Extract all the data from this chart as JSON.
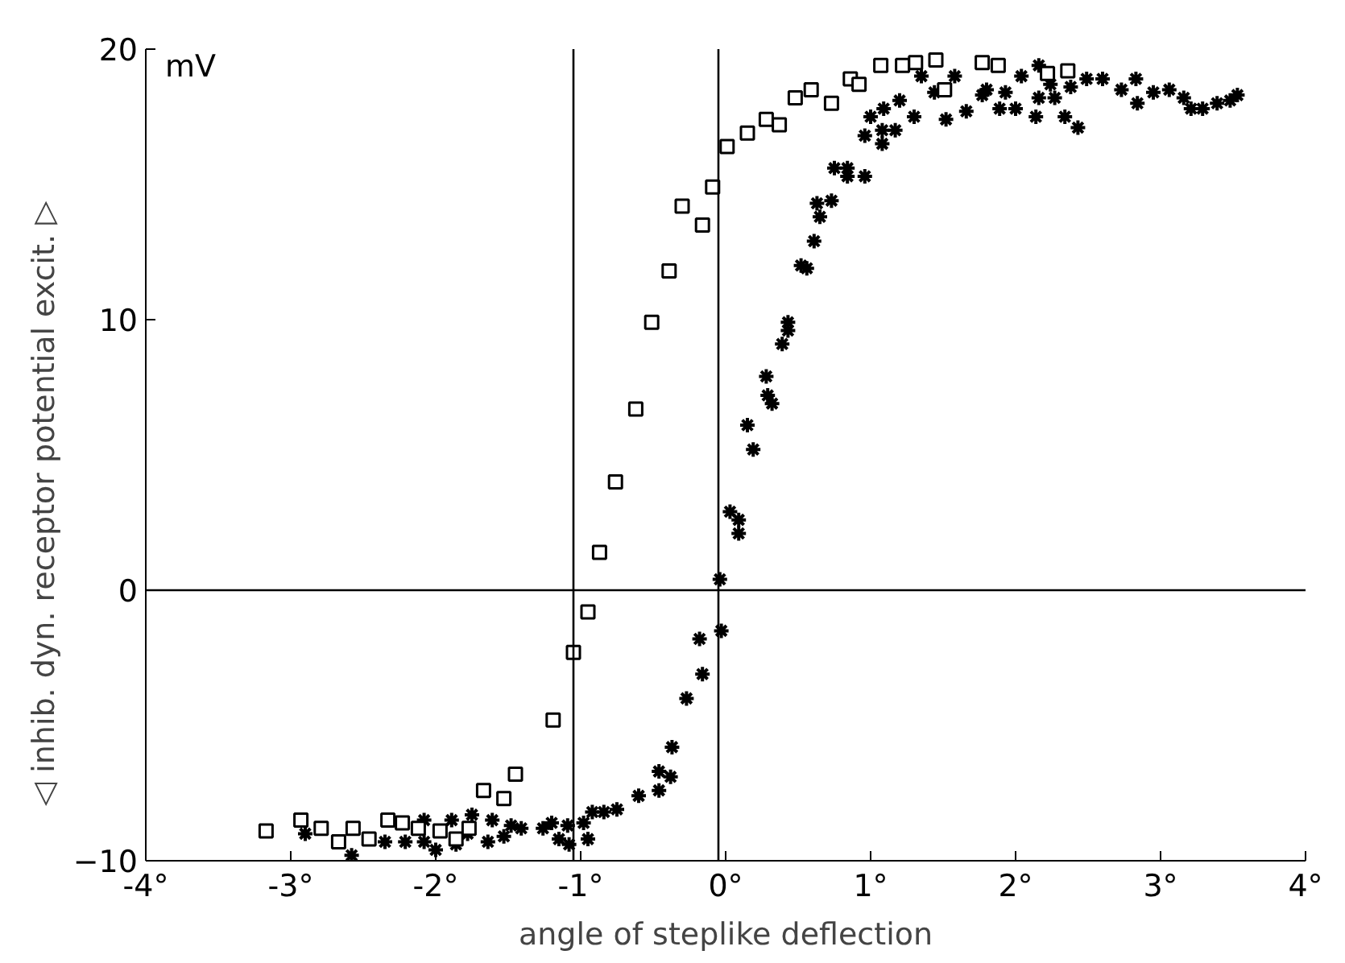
{
  "chart_data": {
    "type": "scatter",
    "xlabel": "angle of steplike deflection",
    "ylabel": "◁ inhib.      dyn. receptor potential      excit. ▷",
    "annotations": [
      "mV"
    ],
    "xlim": [
      -4,
      4
    ],
    "ylim": [
      -10,
      20
    ],
    "xticks": [
      {
        "value": -4,
        "label": "-4°"
      },
      {
        "value": -3,
        "label": "-3°"
      },
      {
        "value": -2,
        "label": "-2°"
      },
      {
        "value": -1,
        "label": "-1°"
      },
      {
        "value": 0,
        "label": "0°"
      },
      {
        "value": 1,
        "label": "1°"
      },
      {
        "value": 2,
        "label": "2°"
      },
      {
        "value": 3,
        "label": "3°"
      },
      {
        "value": 4,
        "label": "4°"
      }
    ],
    "yticks": [
      -10,
      0,
      10,
      20
    ],
    "grid": false,
    "ref_lines": [
      {
        "axis": "y",
        "value": 0,
        "color": "#000000"
      },
      {
        "axis": "x",
        "value": -1.05,
        "color": "#000000"
      },
      {
        "axis": "x",
        "value": -0.05,
        "color": "#000000"
      }
    ],
    "series": [
      {
        "color": "#000000",
        "marker": "square",
        "x": [
          -3.17,
          -2.93,
          -2.79,
          -2.67,
          -2.57,
          -2.46,
          -2.33,
          -2.23,
          -2.12,
          -1.97,
          -1.86,
          -1.77,
          -1.67,
          -1.53,
          -1.45,
          -1.19,
          -1.05,
          -0.95,
          -0.87,
          -0.76,
          -0.62,
          -0.51,
          -0.39,
          -0.3,
          -0.16,
          -0.09,
          0.01,
          0.15,
          0.28,
          0.37,
          0.48,
          0.59,
          0.73,
          0.86,
          0.92,
          1.07,
          1.22,
          1.31,
          1.45,
          1.51,
          1.77,
          1.88,
          2.22,
          2.36
        ],
        "values": [
          -8.9,
          -8.5,
          -8.8,
          -9.3,
          -8.8,
          -9.2,
          -8.5,
          -8.6,
          -8.8,
          -8.9,
          -9.2,
          -8.8,
          -7.4,
          -7.7,
          -6.8,
          -4.8,
          -2.3,
          -0.8,
          1.4,
          4.0,
          6.7,
          9.9,
          11.8,
          14.2,
          13.5,
          14.9,
          16.4,
          16.9,
          17.4,
          17.2,
          18.2,
          18.5,
          18.0,
          18.9,
          18.7,
          19.4,
          19.4,
          19.5,
          19.6,
          18.5,
          19.5,
          19.4,
          19.1,
          19.2
        ]
      },
      {
        "color": "#000000",
        "marker": "cross",
        "x": [
          -2.9,
          -2.58,
          -2.35,
          -2.21,
          -2.08,
          -2.08,
          -2.0,
          -1.89,
          -1.86,
          -1.78,
          -1.75,
          -1.64,
          -1.61,
          -1.53,
          -1.48,
          -1.41,
          -1.26,
          -1.2,
          -1.15,
          -1.08,
          -1.09,
          -0.98,
          -0.95,
          -0.92,
          -0.84,
          -0.75,
          -0.6,
          -0.46,
          -0.46,
          -0.38,
          -0.37,
          -0.27,
          -0.16,
          -0.18,
          -0.03,
          -0.04,
          0.03,
          0.09,
          0.09,
          0.15,
          0.19,
          0.28,
          0.29,
          0.32,
          0.39,
          0.43,
          0.43,
          0.52,
          0.56,
          0.61,
          0.65,
          0.63,
          0.73,
          0.75,
          0.84,
          0.84,
          0.96,
          0.96,
          1.0,
          1.08,
          1.08,
          1.09,
          1.17,
          1.2,
          1.3,
          1.35,
          1.44,
          1.52,
          1.58,
          1.66,
          1.77,
          1.8,
          1.89,
          1.93,
          2.0,
          2.04,
          2.14,
          2.16,
          2.16,
          2.24,
          2.27,
          2.34,
          2.38,
          2.43,
          2.49,
          2.6,
          2.73,
          2.83,
          2.84,
          2.95,
          3.06,
          3.16,
          3.21,
          3.29,
          3.39,
          3.48,
          3.53
        ],
        "values": [
          -9.0,
          -9.8,
          -9.3,
          -9.3,
          -9.3,
          -8.5,
          -9.6,
          -8.5,
          -9.4,
          -9.0,
          -8.3,
          -9.3,
          -8.5,
          -9.1,
          -8.7,
          -8.8,
          -8.8,
          -8.6,
          -9.2,
          -9.4,
          -8.7,
          -8.6,
          -9.2,
          -8.2,
          -8.2,
          -8.1,
          -7.6,
          -6.7,
          -7.4,
          -6.9,
          -5.8,
          -4.0,
          -3.1,
          -1.8,
          -1.5,
          0.4,
          2.9,
          2.6,
          2.1,
          6.1,
          5.2,
          7.9,
          7.2,
          6.9,
          9.1,
          9.6,
          9.9,
          12.0,
          11.9,
          12.9,
          13.8,
          14.3,
          14.4,
          15.6,
          15.6,
          15.3,
          15.3,
          16.8,
          17.5,
          17.0,
          16.5,
          17.8,
          17.0,
          18.1,
          17.5,
          19.0,
          18.4,
          17.4,
          19.0,
          17.7,
          18.3,
          18.5,
          17.8,
          18.4,
          17.8,
          19.0,
          17.5,
          18.2,
          19.4,
          18.7,
          18.2,
          17.5,
          18.6,
          17.1,
          18.9,
          18.9,
          18.5,
          18.9,
          18.0,
          18.4,
          18.5,
          18.2,
          17.8,
          17.8,
          18.0,
          18.1,
          18.3
        ]
      }
    ]
  }
}
